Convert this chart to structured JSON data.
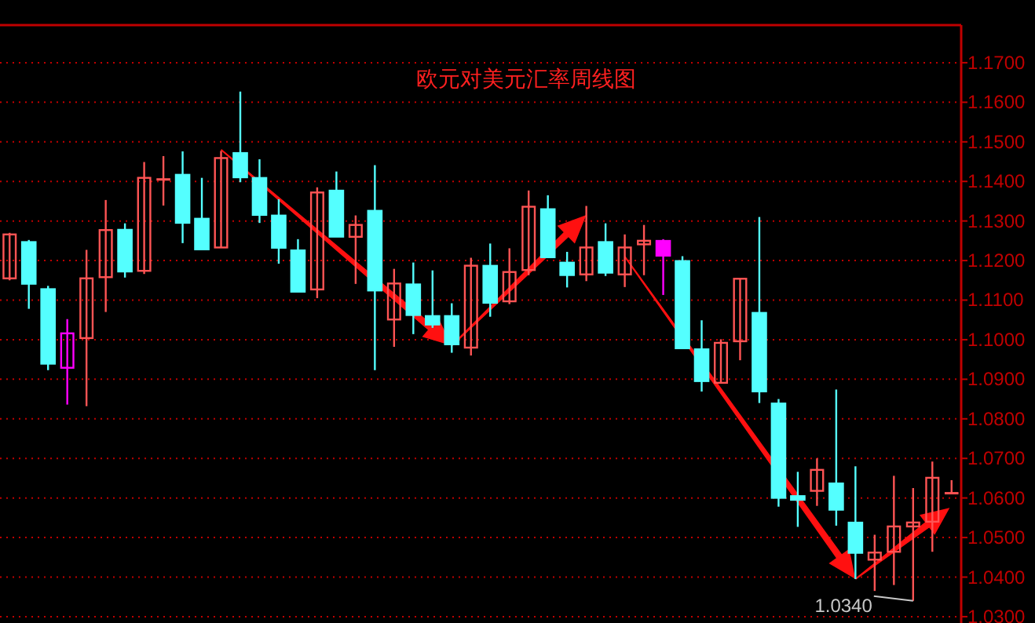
{
  "chart_data": {
    "type": "candlestick",
    "title": "欧元对美元汇率周线图",
    "categories": [
      null,
      null,
      null,
      null,
      null,
      null,
      null,
      null,
      null,
      null,
      null,
      null,
      null,
      null,
      null,
      null,
      null,
      null,
      null,
      null,
      null,
      null,
      null,
      null,
      null,
      null,
      null,
      null,
      null,
      null,
      null,
      null,
      null,
      null,
      null,
      null,
      null,
      null,
      null,
      null,
      null,
      null,
      null,
      null,
      null,
      null,
      null,
      null,
      null,
      null
    ],
    "ohlc": [
      [
        1.1155,
        1.127,
        1.115,
        1.1266
      ],
      [
        1.1247,
        1.1252,
        1.1078,
        1.1141
      ],
      [
        1.1128,
        1.1136,
        1.0923,
        1.0939
      ],
      [
        1.0929,
        1.1052,
        1.0836,
        1.1016
      ],
      [
        1.1004,
        1.1227,
        1.0832,
        1.1155
      ],
      [
        1.1158,
        1.1353,
        1.107,
        1.1277
      ],
      [
        1.1278,
        1.1294,
        1.1157,
        1.1172
      ],
      [
        1.1174,
        1.1449,
        1.1166,
        1.1409
      ],
      [
        1.1405,
        1.1464,
        1.1339,
        1.1405
      ],
      [
        1.1417,
        1.1476,
        1.1244,
        1.1295
      ],
      [
        1.1306,
        1.1409,
        1.1228,
        1.1228
      ],
      [
        1.1233,
        1.1477,
        1.1233,
        1.1459
      ],
      [
        1.1472,
        1.1627,
        1.1398,
        1.141
      ],
      [
        1.1409,
        1.1456,
        1.1295,
        1.1315
      ],
      [
        1.1314,
        1.1355,
        1.1192,
        1.1232
      ],
      [
        1.1226,
        1.1254,
        1.1121,
        1.1121
      ],
      [
        1.1127,
        1.1385,
        1.1105,
        1.1372
      ],
      [
        1.1377,
        1.1425,
        1.126,
        1.126
      ],
      [
        1.126,
        1.1314,
        1.1141,
        1.129
      ],
      [
        1.1326,
        1.1441,
        1.0923,
        1.1124
      ],
      [
        1.1051,
        1.1179,
        1.0982,
        1.1142
      ],
      [
        1.114,
        1.1195,
        1.1014,
        1.1062
      ],
      [
        1.106,
        1.1175,
        1.103,
        1.1038
      ],
      [
        1.106,
        1.1092,
        1.0967,
        1.0988
      ],
      [
        1.098,
        1.1207,
        1.096,
        1.1187
      ],
      [
        1.1187,
        1.1243,
        1.1058,
        1.1093
      ],
      [
        1.1097,
        1.1231,
        1.109,
        1.1171
      ],
      [
        1.1176,
        1.1377,
        1.1163,
        1.1336
      ],
      [
        1.133,
        1.1365,
        1.1208,
        1.1208
      ],
      [
        1.1195,
        1.1222,
        1.1132,
        1.1163
      ],
      [
        1.1165,
        1.1338,
        1.1148,
        1.1233
      ],
      [
        1.1247,
        1.1294,
        1.1161,
        1.1169
      ],
      [
        1.1165,
        1.1266,
        1.1133,
        1.1233
      ],
      [
        1.1241,
        1.129,
        1.1163,
        1.125
      ],
      [
        1.125,
        1.1254,
        1.1113,
        1.1212
      ],
      [
        1.1199,
        1.1211,
        1.0978,
        1.0978
      ],
      [
        1.0976,
        1.1049,
        1.0869,
        1.0895
      ],
      [
        1.0891,
        1.1001,
        1.0891,
        1.0992
      ],
      [
        1.0996,
        1.1154,
        1.0948,
        1.1154
      ],
      [
        1.1068,
        1.131,
        1.084,
        1.0869
      ],
      [
        1.0839,
        1.085,
        1.0578,
        1.06
      ],
      [
        1.0605,
        1.0666,
        1.0527,
        1.0595
      ],
      [
        1.0618,
        1.07,
        1.058,
        1.0671
      ],
      [
        1.0637,
        1.0874,
        1.053,
        1.057
      ],
      [
        1.0538,
        1.068,
        1.0395,
        1.0461
      ],
      [
        1.0444,
        1.0507,
        1.0365,
        1.0462
      ],
      [
        1.0464,
        1.0656,
        1.038,
        1.0528
      ],
      [
        1.0528,
        1.0625,
        1.034,
        1.0538
      ],
      [
        1.054,
        1.0692,
        1.0464,
        1.0651
      ],
      [
        1.0612,
        1.0645,
        1.0612,
        1.0612
      ]
    ],
    "colors": [
      "#ff5454",
      "#54ffff",
      "#54ffff",
      "#ff00ff",
      "#ff5454",
      "#ff5454",
      "#54ffff",
      "#ff5454",
      "#ff5454",
      "#54ffff",
      "#54ffff",
      "#ff5454",
      "#54ffff",
      "#54ffff",
      "#54ffff",
      "#54ffff",
      "#ff5454",
      "#54ffff",
      "#ff5454",
      "#54ffff",
      "#ff5454",
      "#54ffff",
      "#54ffff",
      "#54ffff",
      "#ff5454",
      "#54ffff",
      "#ff5454",
      "#ff5454",
      "#54ffff",
      "#54ffff",
      "#ff5454",
      "#54ffff",
      "#ff5454",
      "#ff5454",
      "#ff00ff",
      "#54ffff",
      "#54ffff",
      "#ff5454",
      "#ff5454",
      "#54ffff",
      "#54ffff",
      "#54ffff",
      "#ff5454",
      "#54ffff",
      "#54ffff",
      "#ff5454",
      "#ff5454",
      "#ff5454",
      "#ff5454",
      "#ff5454"
    ],
    "ylim": [
      1.0284,
      1.1795
    ],
    "yticks": [
      {
        "value": 1.03,
        "label": "1.0300"
      },
      {
        "value": 1.04,
        "label": "1.0400"
      },
      {
        "value": 1.05,
        "label": "1.0500"
      },
      {
        "value": 1.06,
        "label": "1.0600"
      },
      {
        "value": 1.07,
        "label": "1.0700"
      },
      {
        "value": 1.08,
        "label": "1.0800"
      },
      {
        "value": 1.09,
        "label": "1.0900"
      },
      {
        "value": 1.1,
        "label": "1.1000"
      },
      {
        "value": 1.11,
        "label": "1.1100"
      },
      {
        "value": 1.12,
        "label": "1.1200"
      },
      {
        "value": 1.13,
        "label": "1.1300"
      },
      {
        "value": 1.14,
        "label": "1.1400"
      },
      {
        "value": 1.15,
        "label": "1.1500"
      },
      {
        "value": 1.16,
        "label": "1.1600"
      },
      {
        "value": 1.17,
        "label": "1.1700"
      }
    ],
    "grid": "y",
    "tick_labels": "y",
    "annotations": [
      "1.0340"
    ]
  }
}
